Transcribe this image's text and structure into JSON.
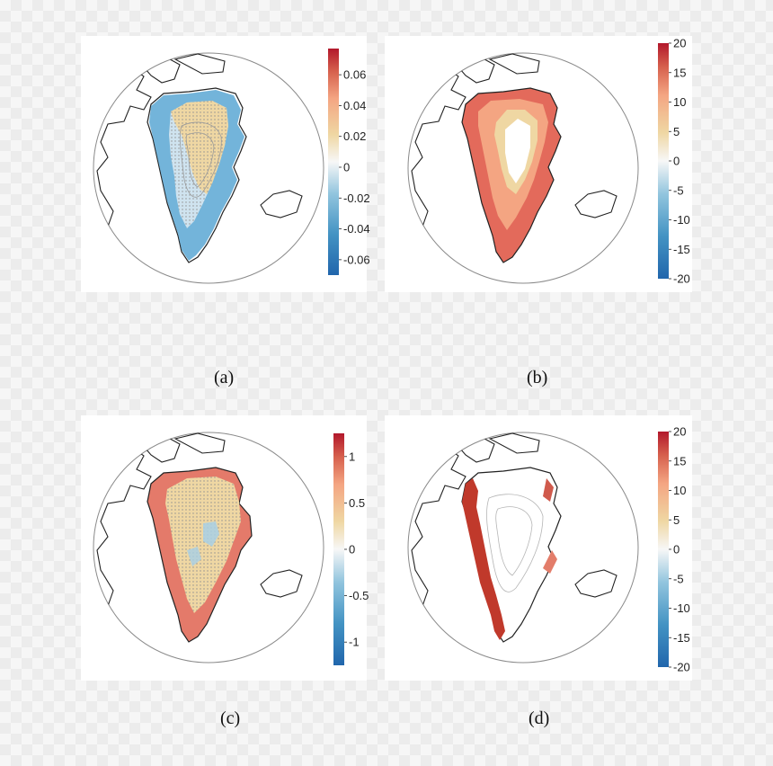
{
  "figure": {
    "captions": [
      "(a)",
      "(b)",
      "(c)",
      "(d)"
    ]
  },
  "colors": {
    "red": "#b2182b",
    "red_mid": "#e36a5b",
    "orange": "#f4a582",
    "beige": "#efd7a3",
    "white": "#f7f7f7",
    "blue_light": "#92c5de",
    "blue_mid": "#4393c3",
    "blue": "#2166ac",
    "gray_dots": "#9a9a9a",
    "outline": "#222222",
    "contour": "#aaaaaa"
  },
  "chart_data": [
    {
      "type": "heatmap",
      "panel": "(a)",
      "title": "",
      "colorbar_ticks": [
        "0.06",
        "0.04",
        "0.02",
        "0",
        "-0.02",
        "-0.04",
        "-0.06"
      ],
      "colorbar_values": [
        0.06,
        0.04,
        0.02,
        0,
        -0.02,
        -0.04,
        -0.06
      ],
      "clim": [
        -0.07,
        0.077
      ],
      "pattern": "blue along west and southern margins, beige/orange interior with gray stippling",
      "colormap": "diverging red-white-blue"
    },
    {
      "type": "heatmap",
      "panel": "(b)",
      "title": "",
      "colorbar_ticks": [
        "20",
        "15",
        "10",
        "5",
        "0",
        "-5",
        "-10",
        "-15",
        "-20"
      ],
      "colorbar_values": [
        20,
        15,
        10,
        5,
        0,
        -5,
        -10,
        -15,
        -20
      ],
      "clim": [
        -20,
        20
      ],
      "pattern": "red/orange along coastal margins, white interior",
      "colormap": "diverging red-white-blue"
    },
    {
      "type": "heatmap",
      "panel": "(c)",
      "title": "",
      "colorbar_ticks": [
        "1",
        "0.5",
        "0",
        "-0.5",
        "-1"
      ],
      "colorbar_values": [
        1,
        0.5,
        0,
        -0.5,
        -1
      ],
      "clim": [
        -1.25,
        1.25
      ],
      "pattern": "red along west margin, beige interior with gray stippling, light blue patches in center",
      "colormap": "diverging red-white-blue"
    },
    {
      "type": "heatmap",
      "panel": "(d)",
      "title": "",
      "colorbar_ticks": [
        "20",
        "15",
        "10",
        "5",
        "0",
        "-5",
        "-10",
        "-15",
        "-20"
      ],
      "colorbar_values": [
        20,
        15,
        10,
        5,
        0,
        -5,
        -10,
        -15,
        -20
      ],
      "clim": [
        -20,
        20
      ],
      "pattern": "dark red along west coast and scattered east coast, white interior",
      "colormap": "diverging red-white-blue"
    }
  ]
}
